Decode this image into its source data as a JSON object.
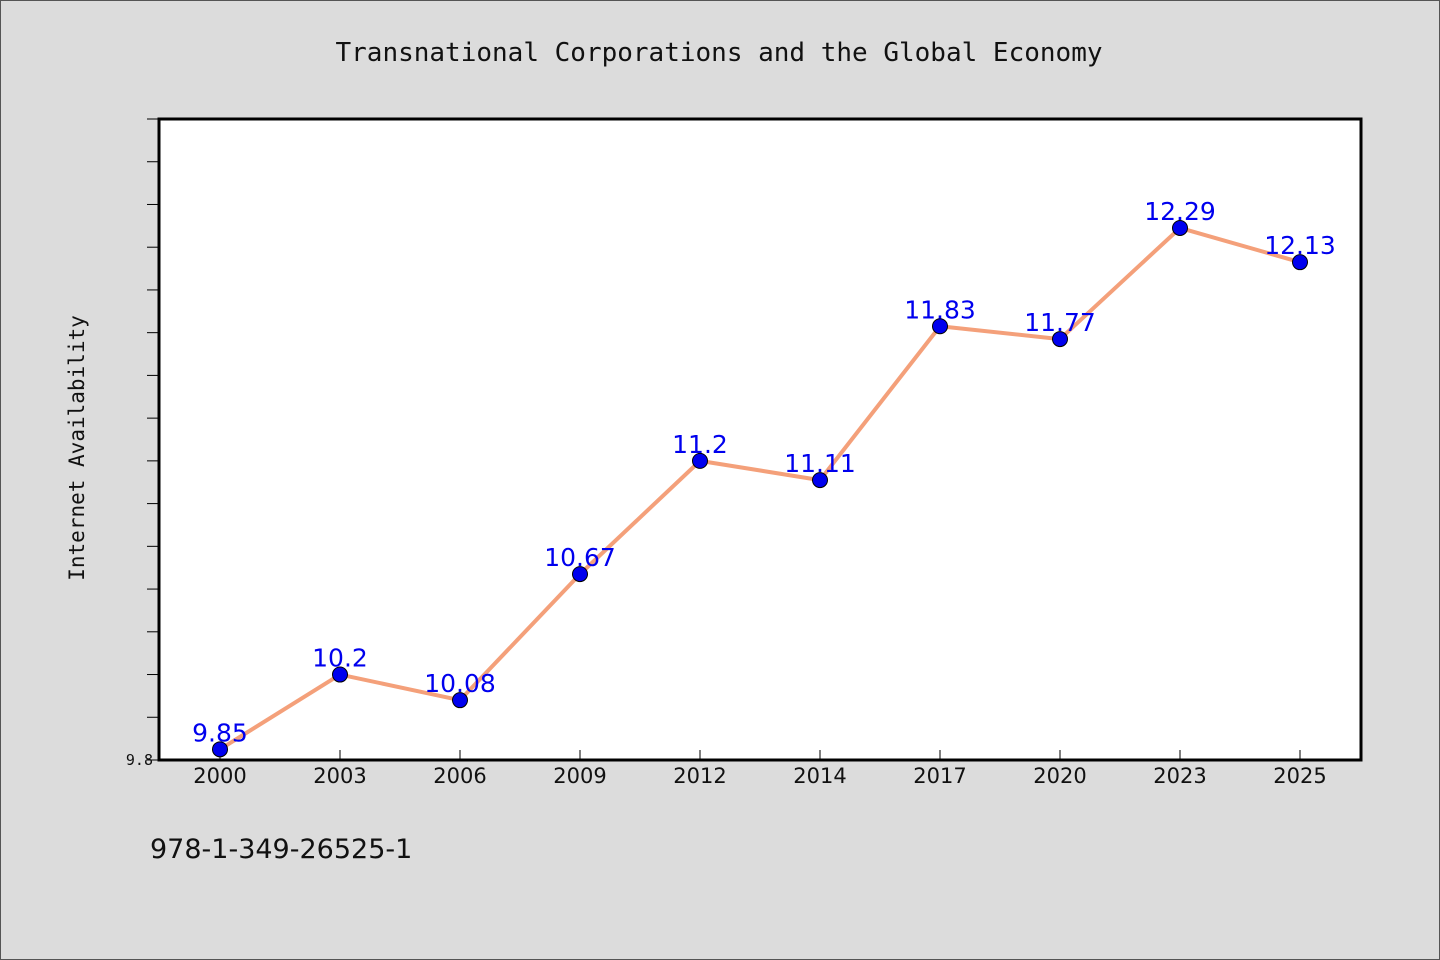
{
  "chart_data": {
    "type": "line",
    "title": "Transnational Corporations and the Global Economy",
    "xlabel": "",
    "ylabel": "Internet Availability",
    "categories": [
      "2000",
      "2003",
      "2006",
      "2009",
      "2012",
      "2014",
      "2017",
      "2020",
      "2023",
      "2025"
    ],
    "series": [
      {
        "values": [
          9.85,
          10.2,
          10.08,
          10.67,
          11.2,
          11.11,
          11.83,
          11.77,
          12.29,
          12.13
        ],
        "data_labels": [
          "9.85",
          "10.2",
          "10.08",
          "10.67",
          "11.2",
          "11.11",
          "11.83",
          "11.77",
          "12.29",
          "12.13"
        ]
      }
    ],
    "ylim": [
      9.8,
      12.8
    ],
    "ytick_labels": [
      "9.8"
    ],
    "line_color": "#f4a07a",
    "marker_color": "#0000ee",
    "label_color": "#0000ee",
    "grid": false
  },
  "footer": {
    "isbn": "978-1-349-26525-1"
  }
}
